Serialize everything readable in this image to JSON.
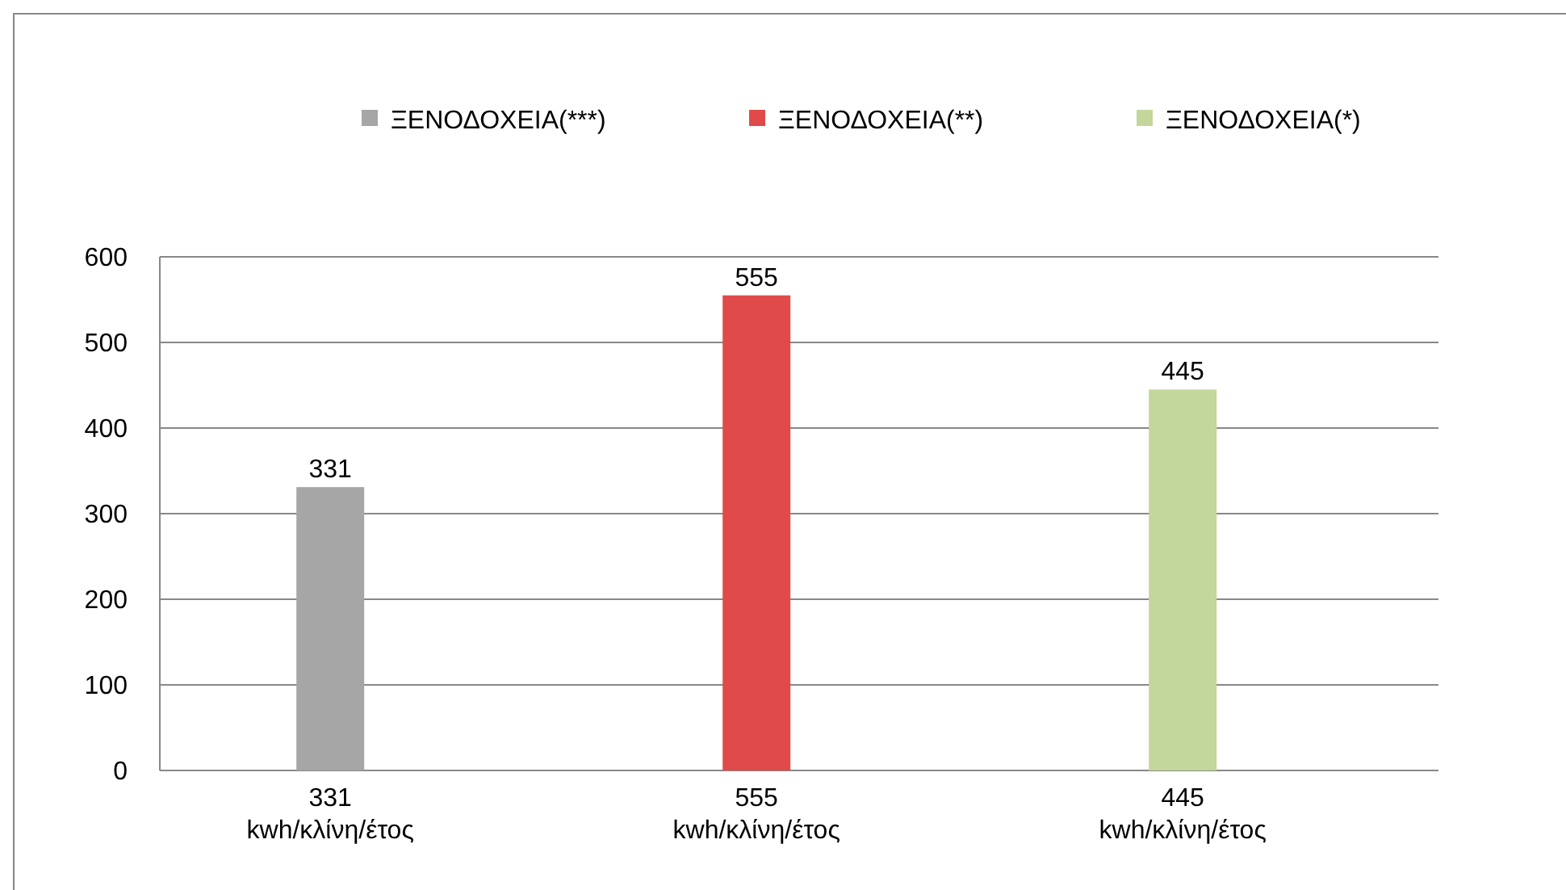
{
  "chart_data": {
    "type": "bar",
    "categories": [
      "331\nkwh/κλίνη/έτος",
      "555\nkwh/κλίνη/έτος",
      "445\nkwh/κλίνη/έτος"
    ],
    "series": [
      {
        "name": "ΞΕΝΟΔΟΧΕΙΑ(***)",
        "color": "#a6a6a6",
        "values": [
          331,
          null,
          null
        ]
      },
      {
        "name": "ΞΕΝΟΔΟΧΕΙΑ(**)",
        "color": "#e04a4a",
        "values": [
          null,
          555,
          null
        ]
      },
      {
        "name": "ΞΕΝΟΔΟΧΕΙΑ(*)",
        "color": "#c3d69b",
        "values": [
          null,
          null,
          445
        ]
      }
    ],
    "ylim": [
      0,
      600
    ],
    "yticks": [
      0,
      100,
      200,
      300,
      400,
      500,
      600
    ],
    "grid": "y",
    "legend": "top",
    "data_labels": true
  }
}
